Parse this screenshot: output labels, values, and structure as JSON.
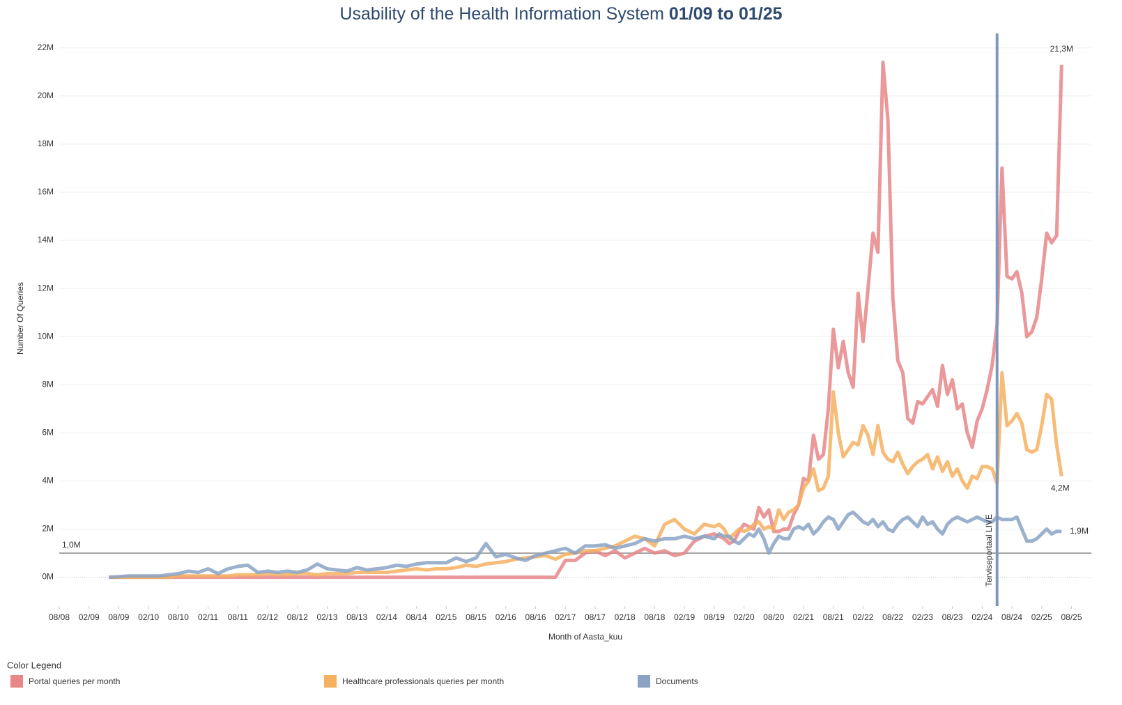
{
  "chart_data": {
    "type": "line",
    "title": "Usability of the Health Information System",
    "title_range": "01/09 to 01/25",
    "x_label": "Month of Aasta_kuu",
    "y_label": "Number Of Queries",
    "legend_title": "Color Legend",
    "legend": "bottom-left",
    "grid": true,
    "xlim": [
      -12,
      196
    ],
    "ylim": [
      -1.2,
      22.6
    ],
    "xticks": [
      {
        "value": -12,
        "label": "08/08"
      },
      {
        "value": -6,
        "label": "02/09"
      },
      {
        "value": 0,
        "label": "08/09"
      },
      {
        "value": 6,
        "label": "02/10"
      },
      {
        "value": 12,
        "label": "08/10"
      },
      {
        "value": 18,
        "label": "02/11"
      },
      {
        "value": 24,
        "label": "08/11"
      },
      {
        "value": 30,
        "label": "02/12"
      },
      {
        "value": 36,
        "label": "08/12"
      },
      {
        "value": 42,
        "label": "02/13"
      },
      {
        "value": 48,
        "label": "08/13"
      },
      {
        "value": 54,
        "label": "02/14"
      },
      {
        "value": 60,
        "label": "08/14"
      },
      {
        "value": 66,
        "label": "02/15"
      },
      {
        "value": 72,
        "label": "08/15"
      },
      {
        "value": 78,
        "label": "02/16"
      },
      {
        "value": 84,
        "label": "08/16"
      },
      {
        "value": 90,
        "label": "02/17"
      },
      {
        "value": 96,
        "label": "08/17"
      },
      {
        "value": 102,
        "label": "02/18"
      },
      {
        "value": 108,
        "label": "08/18"
      },
      {
        "value": 114,
        "label": "02/19"
      },
      {
        "value": 120,
        "label": "08/19"
      },
      {
        "value": 126,
        "label": "02/20"
      },
      {
        "value": 132,
        "label": "08/20"
      },
      {
        "value": 138,
        "label": "02/21"
      },
      {
        "value": 144,
        "label": "08/21"
      },
      {
        "value": 150,
        "label": "02/22"
      },
      {
        "value": 156,
        "label": "08/22"
      },
      {
        "value": 162,
        "label": "02/23"
      },
      {
        "value": 168,
        "label": "08/23"
      },
      {
        "value": 174,
        "label": "02/24"
      },
      {
        "value": 180,
        "label": "08/24"
      },
      {
        "value": 186,
        "label": "02/25"
      },
      {
        "value": 192,
        "label": "08/25"
      }
    ],
    "yticks": [
      {
        "value": 0,
        "label": "0M"
      },
      {
        "value": 2,
        "label": "2M"
      },
      {
        "value": 4,
        "label": "4M"
      },
      {
        "value": 6,
        "label": "6M"
      },
      {
        "value": 8,
        "label": "8M"
      },
      {
        "value": 10,
        "label": "10M"
      },
      {
        "value": 12,
        "label": "12M"
      },
      {
        "value": 14,
        "label": "14M"
      },
      {
        "value": 16,
        "label": "16M"
      },
      {
        "value": 18,
        "label": "18M"
      },
      {
        "value": 20,
        "label": "20M"
      },
      {
        "value": 22,
        "label": "22M"
      }
    ],
    "reference_lines": [
      {
        "axis": "y",
        "value": 1.0,
        "label": "1,0M",
        "color": "#a6a6a6"
      },
      {
        "axis": "x",
        "value": 177,
        "label": "Terviseportaal LIVE",
        "color": "#7f97bd"
      }
    ],
    "x": [
      -2,
      0,
      2,
      4,
      6,
      8,
      10,
      12,
      14,
      16,
      18,
      20,
      22,
      24,
      26,
      28,
      30,
      32,
      34,
      36,
      38,
      40,
      42,
      44,
      46,
      48,
      50,
      52,
      54,
      56,
      58,
      60,
      62,
      64,
      66,
      68,
      70,
      72,
      74,
      76,
      78,
      80,
      82,
      84,
      86,
      88,
      90,
      92,
      94,
      96,
      98,
      100,
      102,
      104,
      106,
      108,
      110,
      112,
      114,
      116,
      118,
      120,
      121,
      122,
      123,
      124,
      125,
      126,
      127,
      128,
      129,
      130,
      131,
      132,
      133,
      134,
      135,
      136,
      137,
      138,
      139,
      140,
      141,
      142,
      143,
      144,
      145,
      146,
      147,
      148,
      149,
      150,
      151,
      152,
      153,
      154,
      155,
      156,
      157,
      158,
      159,
      160,
      161,
      162,
      163,
      164,
      165,
      166,
      167,
      168,
      169,
      170,
      171,
      172,
      173,
      174,
      175,
      176,
      177,
      178,
      179,
      180,
      181,
      182,
      183,
      184,
      185,
      186,
      187,
      188,
      189,
      190
    ],
    "series": [
      {
        "name": "Portal queries per month",
        "color": "#e8868a",
        "values": [
          0,
          0,
          0,
          0,
          0,
          0,
          0,
          0,
          0,
          0,
          0,
          0,
          0,
          0,
          0,
          0,
          0,
          0,
          0,
          0,
          0,
          0,
          0,
          0,
          0,
          0,
          0,
          0,
          0,
          0,
          0,
          0,
          0,
          0,
          0,
          0,
          0,
          0,
          0,
          0,
          0,
          0,
          0,
          0,
          0,
          0,
          0.7,
          0.7,
          1.0,
          1.1,
          0.9,
          1.1,
          0.8,
          1.0,
          1.2,
          1.0,
          1.1,
          0.9,
          1.0,
          1.5,
          1.7,
          1.8,
          1.7,
          1.6,
          1.4,
          1.5,
          1.9,
          2.2,
          2.1,
          2.0,
          2.9,
          2.5,
          2.8,
          1.9,
          1.9,
          2.0,
          2.0,
          2.6,
          3.0,
          4.1,
          4.0,
          5.9,
          4.9,
          5.1,
          7.0,
          10.3,
          8.7,
          9.8,
          8.5,
          7.9,
          11.8,
          9.8,
          12.0,
          14.3,
          13.5,
          21.4,
          19.0,
          11.6,
          9.0,
          8.5,
          6.6,
          6.4,
          7.3,
          7.2,
          7.5,
          7.8,
          7.1,
          8.8,
          7.6,
          8.2,
          7.0,
          7.2,
          6.0,
          5.4,
          6.5,
          7.0,
          7.8,
          8.8,
          10.5,
          17.0,
          12.5,
          12.4,
          12.7,
          11.8,
          10.0,
          10.2,
          10.8,
          12.4,
          14.3,
          13.9,
          14.2,
          21.3
        ],
        "value_labels": {
          "131": "21,3M"
        }
      },
      {
        "name": "Healthcare professionals queries per month",
        "color": "#f5b060",
        "values": [
          0,
          0,
          0,
          0,
          0,
          0,
          0,
          0.05,
          0.05,
          0.05,
          0.05,
          0.05,
          0.05,
          0.1,
          0.1,
          0.1,
          0.15,
          0.1,
          0.1,
          0.15,
          0.15,
          0.1,
          0.15,
          0.15,
          0.15,
          0.2,
          0.2,
          0.2,
          0.2,
          0.25,
          0.3,
          0.35,
          0.3,
          0.35,
          0.35,
          0.4,
          0.5,
          0.45,
          0.55,
          0.6,
          0.65,
          0.75,
          0.8,
          0.85,
          0.9,
          0.75,
          0.95,
          1.0,
          1.1,
          1.1,
          1.2,
          1.3,
          1.5,
          1.7,
          1.6,
          1.3,
          2.2,
          2.4,
          2.0,
          1.8,
          2.2,
          2.1,
          2.2,
          2.0,
          1.6,
          1.8,
          2.0,
          1.9,
          2.0,
          2.2,
          2.3,
          2.0,
          2.1,
          2.0,
          2.8,
          2.4,
          2.7,
          2.8,
          3.0,
          3.7,
          4.0,
          4.5,
          3.6,
          3.7,
          4.2,
          7.7,
          6.0,
          5.0,
          5.3,
          5.6,
          5.5,
          6.3,
          5.9,
          5.1,
          6.3,
          5.2,
          4.9,
          4.8,
          5.2,
          4.7,
          4.3,
          4.6,
          4.8,
          4.9,
          5.1,
          4.5,
          5.0,
          4.4,
          4.8,
          4.2,
          4.5,
          4.0,
          3.7,
          4.2,
          4.1,
          4.6,
          4.6,
          4.5,
          3.9,
          8.5,
          6.3,
          6.5,
          6.8,
          6.4,
          5.3,
          5.2,
          5.3,
          6.3,
          7.6,
          7.4,
          5.5,
          4.2
        ],
        "value_labels": {
          "131": "4,2M"
        }
      },
      {
        "name": "Documents",
        "color": "#8aa3c4",
        "values": [
          0,
          0.02,
          0.05,
          0.05,
          0.05,
          0.05,
          0.1,
          0.15,
          0.25,
          0.2,
          0.35,
          0.15,
          0.35,
          0.45,
          0.5,
          0.2,
          0.25,
          0.2,
          0.25,
          0.2,
          0.3,
          0.55,
          0.35,
          0.3,
          0.25,
          0.4,
          0.3,
          0.35,
          0.4,
          0.5,
          0.45,
          0.55,
          0.6,
          0.6,
          0.6,
          0.8,
          0.65,
          0.8,
          1.4,
          0.85,
          0.95,
          0.8,
          0.7,
          0.9,
          1.0,
          1.1,
          1.2,
          1.0,
          1.3,
          1.3,
          1.35,
          1.2,
          1.3,
          1.4,
          1.6,
          1.5,
          1.6,
          1.6,
          1.7,
          1.6,
          1.7,
          1.6,
          1.8,
          1.7,
          1.7,
          1.5,
          1.4,
          1.6,
          1.8,
          1.7,
          2.0,
          1.6,
          1.0,
          1.4,
          1.7,
          1.6,
          1.6,
          2.0,
          2.1,
          2.0,
          2.2,
          1.8,
          2.0,
          2.3,
          2.5,
          2.4,
          2.0,
          2.3,
          2.6,
          2.7,
          2.5,
          2.3,
          2.2,
          2.4,
          2.1,
          2.3,
          2.0,
          1.9,
          2.2,
          2.4,
          2.5,
          2.3,
          2.1,
          2.5,
          2.2,
          2.3,
          2.0,
          1.8,
          2.2,
          2.4,
          2.5,
          2.4,
          2.3,
          2.4,
          2.5,
          2.4,
          2.3,
          2.3,
          2.5,
          2.4,
          2.4,
          2.4,
          2.5,
          2.0,
          1.5,
          1.5,
          1.6,
          1.8,
          2.0,
          1.8,
          1.9,
          1.9
        ],
        "value_labels": {
          "131": "1,9M"
        }
      }
    ]
  }
}
